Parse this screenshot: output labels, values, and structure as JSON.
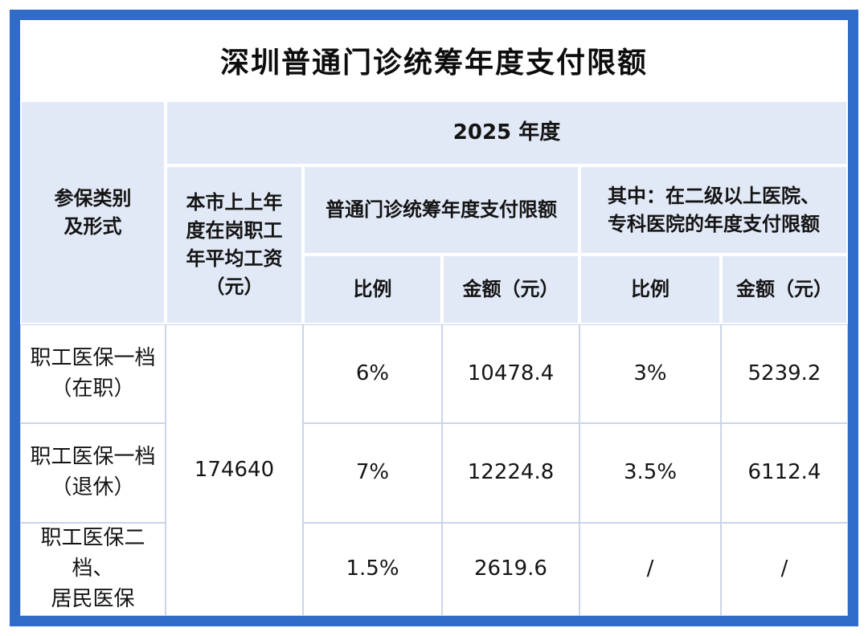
{
  "title": "深圳普通门诊统筹年度支付限额",
  "table": {
    "year_header": "2025 年度",
    "col_category": "参保类别\n及形式",
    "col_avg_wage": "本市上上年\n度在岗职工\n年平均工资\n（元）",
    "group_general": "普通门诊统筹年度支付限额",
    "group_hospital": "其中：在二级以上医院、\n专科医院的年度支付限额",
    "sub_ratio1": "比例",
    "sub_amount1": "金额（元）",
    "sub_ratio2": "比例",
    "sub_amount2": "金额（元）",
    "avg_wage_value": "174640",
    "rows": [
      {
        "category": "职工医保一档\n（在职）",
        "ratio": "6%",
        "amount": "10478.4",
        "hosp_ratio": "3%",
        "hosp_amount": "5239.2"
      },
      {
        "category": "职工医保一档\n（退休）",
        "ratio": "7%",
        "amount": "12224.8",
        "hosp_ratio": "3.5%",
        "hosp_amount": "6112.4"
      },
      {
        "category": "职工医保二档、\n居民医保",
        "ratio": "1.5%",
        "amount": "2619.6",
        "hosp_ratio": "/",
        "hosp_amount": "/"
      }
    ]
  },
  "colors": {
    "frame_blue": "#2F6BC7",
    "header_bg": "#E2E9F6",
    "grid_line": "#C9D5E8",
    "text": "#141414"
  },
  "chart_data": {
    "type": "table",
    "title": "深圳普通门诊统筹年度支付限额",
    "year": "2025 年度",
    "columns": [
      "参保类别及形式",
      "本市上上年度在岗职工年平均工资（元）",
      "普通门诊统筹年度支付限额 比例",
      "普通门诊统筹年度支付限额 金额（元）",
      "其中：在二级以上医院、专科医院的年度支付限额 比例",
      "其中：在二级以上医院、专科医院的年度支付限额 金额（元）"
    ],
    "rows": [
      [
        "职工医保一档（在职）",
        "174640",
        "6%",
        "10478.4",
        "3%",
        "5239.2"
      ],
      [
        "职工医保一档（退休）",
        "174640",
        "7%",
        "12224.8",
        "3.5%",
        "6112.4"
      ],
      [
        "职工医保二档、居民医保",
        "174640",
        "1.5%",
        "2619.6",
        "/",
        "/"
      ]
    ]
  }
}
